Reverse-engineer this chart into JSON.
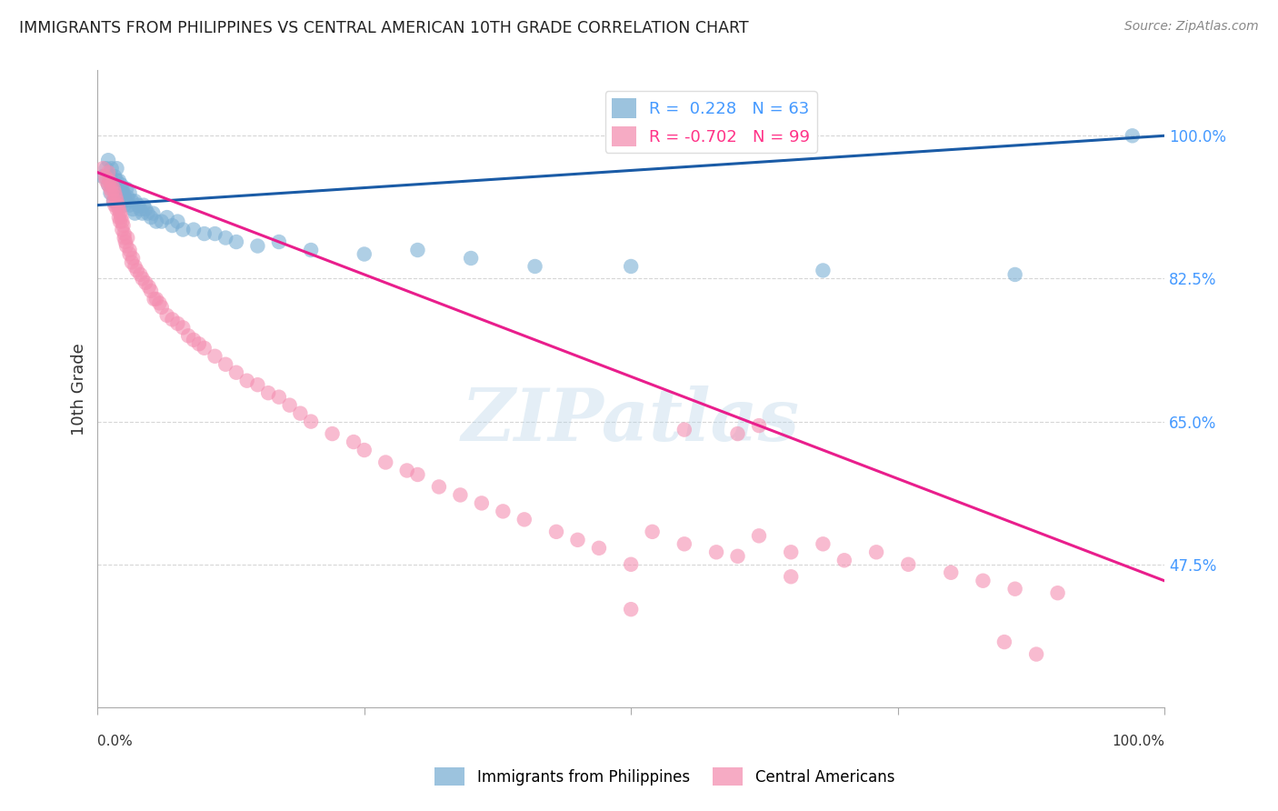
{
  "title": "IMMIGRANTS FROM PHILIPPINES VS CENTRAL AMERICAN 10TH GRADE CORRELATION CHART",
  "source": "Source: ZipAtlas.com",
  "ylabel": "10th Grade",
  "yticks": [
    0.475,
    0.65,
    0.825,
    1.0
  ],
  "ytick_labels": [
    "47.5%",
    "65.0%",
    "82.5%",
    "100.0%"
  ],
  "xlim": [
    0.0,
    1.0
  ],
  "ylim": [
    0.3,
    1.08
  ],
  "R_blue": 0.228,
  "N_blue": 63,
  "R_pink": -0.702,
  "N_pink": 99,
  "blue_color": "#7BAFD4",
  "pink_color": "#F48FB1",
  "line_blue": "#1A5BA6",
  "line_pink": "#E91E8C",
  "watermark": "ZIPatlas",
  "legend_label_blue": "Immigrants from Philippines",
  "legend_label_pink": "Central Americans",
  "blue_line_start": 0.915,
  "blue_line_end": 1.0,
  "pink_line_start": 0.955,
  "pink_line_end": 0.455,
  "blue_x": [
    0.005,
    0.008,
    0.01,
    0.01,
    0.012,
    0.012,
    0.013,
    0.015,
    0.015,
    0.016,
    0.017,
    0.018,
    0.018,
    0.019,
    0.02,
    0.02,
    0.021,
    0.022,
    0.022,
    0.023,
    0.023,
    0.024,
    0.025,
    0.025,
    0.026,
    0.027,
    0.028,
    0.03,
    0.03,
    0.032,
    0.033,
    0.035,
    0.035,
    0.038,
    0.04,
    0.042,
    0.043,
    0.045,
    0.047,
    0.05,
    0.052,
    0.055,
    0.06,
    0.065,
    0.07,
    0.075,
    0.08,
    0.09,
    0.1,
    0.11,
    0.12,
    0.13,
    0.15,
    0.17,
    0.2,
    0.25,
    0.3,
    0.35,
    0.41,
    0.5,
    0.68,
    0.86,
    0.97
  ],
  "blue_y": [
    0.95,
    0.96,
    0.94,
    0.97,
    0.93,
    0.95,
    0.96,
    0.94,
    0.92,
    0.95,
    0.935,
    0.945,
    0.96,
    0.93,
    0.925,
    0.945,
    0.935,
    0.925,
    0.94,
    0.935,
    0.92,
    0.93,
    0.925,
    0.915,
    0.92,
    0.935,
    0.925,
    0.915,
    0.93,
    0.92,
    0.91,
    0.92,
    0.905,
    0.915,
    0.91,
    0.905,
    0.915,
    0.91,
    0.905,
    0.9,
    0.905,
    0.895,
    0.895,
    0.9,
    0.89,
    0.895,
    0.885,
    0.885,
    0.88,
    0.88,
    0.875,
    0.87,
    0.865,
    0.87,
    0.86,
    0.855,
    0.86,
    0.85,
    0.84,
    0.84,
    0.835,
    0.83,
    1.0
  ],
  "pink_x": [
    0.005,
    0.007,
    0.008,
    0.01,
    0.01,
    0.011,
    0.012,
    0.013,
    0.013,
    0.015,
    0.015,
    0.016,
    0.016,
    0.017,
    0.018,
    0.018,
    0.019,
    0.02,
    0.02,
    0.021,
    0.021,
    0.022,
    0.023,
    0.023,
    0.024,
    0.025,
    0.025,
    0.026,
    0.027,
    0.028,
    0.03,
    0.03,
    0.032,
    0.033,
    0.035,
    0.037,
    0.04,
    0.042,
    0.045,
    0.048,
    0.05,
    0.053,
    0.055,
    0.058,
    0.06,
    0.065,
    0.07,
    0.075,
    0.08,
    0.085,
    0.09,
    0.095,
    0.1,
    0.11,
    0.12,
    0.13,
    0.14,
    0.15,
    0.16,
    0.17,
    0.18,
    0.19,
    0.2,
    0.22,
    0.24,
    0.25,
    0.27,
    0.29,
    0.3,
    0.32,
    0.34,
    0.36,
    0.38,
    0.4,
    0.43,
    0.45,
    0.47,
    0.5,
    0.52,
    0.55,
    0.58,
    0.6,
    0.62,
    0.65,
    0.68,
    0.7,
    0.73,
    0.76,
    0.8,
    0.83,
    0.86,
    0.9,
    0.55,
    0.6,
    0.62,
    0.5,
    0.65,
    0.85,
    0.88
  ],
  "pink_y": [
    0.96,
    0.95,
    0.945,
    0.955,
    0.94,
    0.945,
    0.935,
    0.94,
    0.93,
    0.935,
    0.92,
    0.93,
    0.915,
    0.925,
    0.92,
    0.91,
    0.915,
    0.91,
    0.9,
    0.905,
    0.895,
    0.9,
    0.895,
    0.885,
    0.89,
    0.88,
    0.875,
    0.87,
    0.865,
    0.875,
    0.86,
    0.855,
    0.845,
    0.85,
    0.84,
    0.835,
    0.83,
    0.825,
    0.82,
    0.815,
    0.81,
    0.8,
    0.8,
    0.795,
    0.79,
    0.78,
    0.775,
    0.77,
    0.765,
    0.755,
    0.75,
    0.745,
    0.74,
    0.73,
    0.72,
    0.71,
    0.7,
    0.695,
    0.685,
    0.68,
    0.67,
    0.66,
    0.65,
    0.635,
    0.625,
    0.615,
    0.6,
    0.59,
    0.585,
    0.57,
    0.56,
    0.55,
    0.54,
    0.53,
    0.515,
    0.505,
    0.495,
    0.475,
    0.515,
    0.5,
    0.49,
    0.485,
    0.51,
    0.49,
    0.5,
    0.48,
    0.49,
    0.475,
    0.465,
    0.455,
    0.445,
    0.44,
    0.64,
    0.635,
    0.645,
    0.42,
    0.46,
    0.38,
    0.365
  ]
}
